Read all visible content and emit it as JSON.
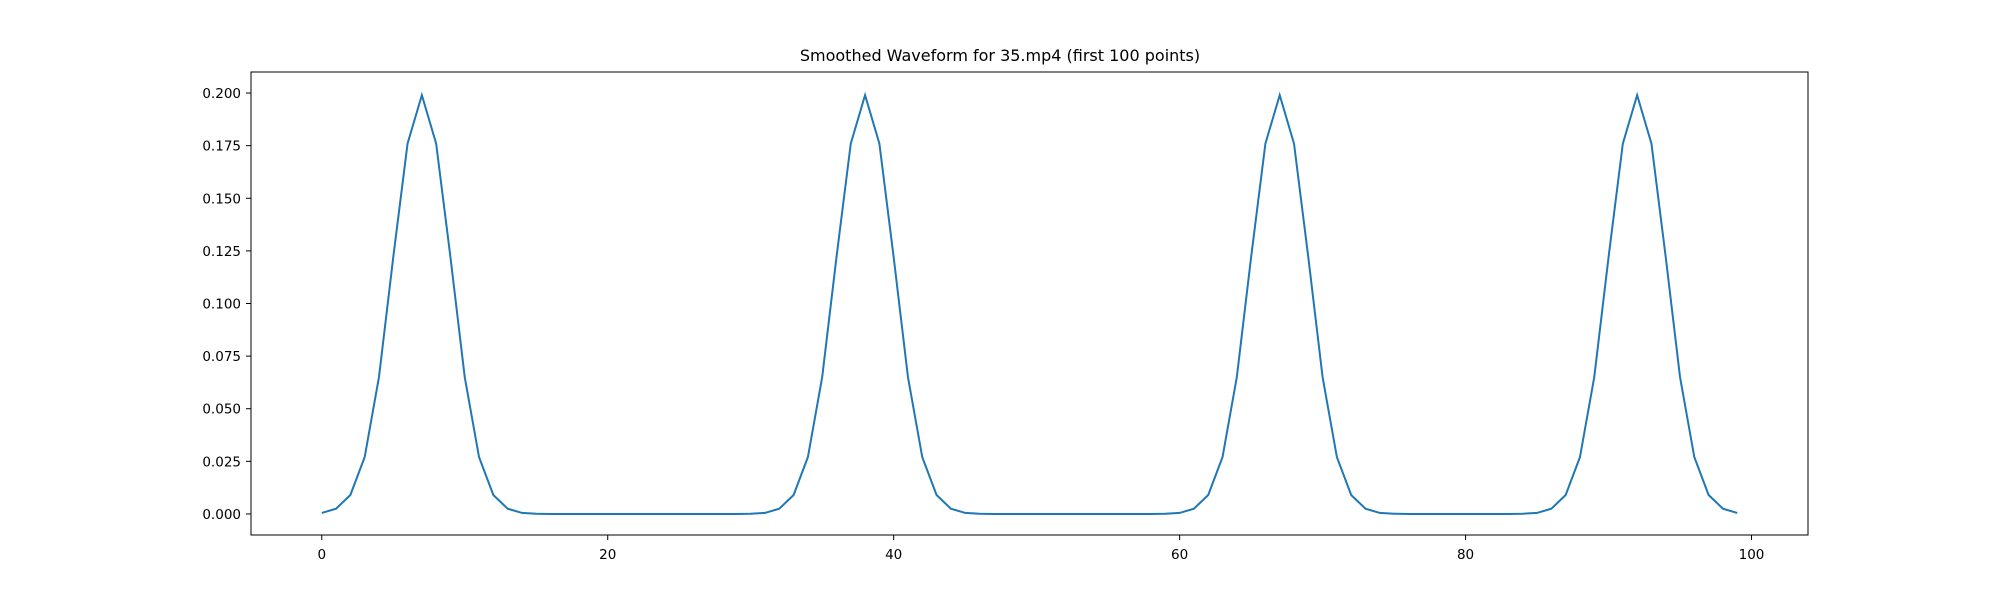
{
  "chart_data": {
    "type": "line",
    "title": "Smoothed Waveform for 35.mp4 (first 100 points)",
    "xlabel": "",
    "ylabel": "",
    "xlim": [
      -4.95,
      103.95
    ],
    "ylim": [
      -0.01,
      0.21
    ],
    "xticks": [
      0,
      20,
      40,
      60,
      80,
      100
    ],
    "yticks": [
      0.0,
      0.025,
      0.05,
      0.075,
      0.1,
      0.125,
      0.15,
      0.175,
      0.2
    ],
    "ytick_labels": [
      "0.000",
      "0.025",
      "0.050",
      "0.075",
      "0.100",
      "0.125",
      "0.150",
      "0.175",
      "0.200"
    ],
    "grid": false,
    "legend": "none",
    "line_color": "#1f77b4",
    "series": [
      {
        "x": [
          0,
          1,
          2,
          3,
          4,
          5,
          6,
          7,
          8,
          9,
          10,
          11,
          12,
          13,
          14,
          15,
          16,
          17,
          18,
          19,
          20,
          21,
          22,
          23,
          24,
          25,
          26,
          27,
          28,
          29,
          30,
          31,
          32,
          33,
          34,
          35,
          36,
          37,
          38,
          39,
          40,
          41,
          42,
          43,
          44,
          45,
          46,
          47,
          48,
          49,
          50,
          51,
          52,
          53,
          54,
          55,
          56,
          57,
          58,
          59,
          60,
          61,
          62,
          63,
          64,
          65,
          66,
          67,
          68,
          69,
          70,
          71,
          72,
          73,
          74,
          75,
          76,
          77,
          78,
          79,
          80,
          81,
          82,
          83,
          84,
          85,
          86,
          87,
          88,
          89,
          90,
          91,
          92,
          93,
          94,
          95,
          96,
          97,
          98,
          99
        ],
        "y": [
          0.0005,
          0.0025,
          0.009,
          0.027,
          0.065,
          0.122,
          0.176,
          0.199,
          0.176,
          0.122,
          0.065,
          0.027,
          0.009,
          0.0025,
          0.0005,
          0.0001,
          0,
          0,
          0,
          0,
          0,
          0,
          0,
          0,
          0,
          0,
          0,
          0,
          0,
          0,
          0.0001,
          0.0005,
          0.0025,
          0.009,
          0.027,
          0.065,
          0.122,
          0.176,
          0.199,
          0.176,
          0.122,
          0.065,
          0.027,
          0.009,
          0.0025,
          0.0005,
          0.0001,
          0,
          0,
          0,
          0,
          0,
          0,
          0,
          0,
          0,
          0,
          0,
          0,
          0.0001,
          0.0005,
          0.0025,
          0.009,
          0.027,
          0.065,
          0.122,
          0.176,
          0.199,
          0.176,
          0.122,
          0.065,
          0.027,
          0.009,
          0.0025,
          0.0005,
          0.0001,
          0,
          0,
          0,
          0,
          0,
          0,
          0,
          0,
          0.0001,
          0.0005,
          0.0025,
          0.009,
          0.027,
          0.065,
          0.122,
          0.176,
          0.199,
          0.176,
          0.122,
          0.065,
          0.027,
          0.009,
          0.0025,
          0.0005
        ]
      }
    ]
  }
}
